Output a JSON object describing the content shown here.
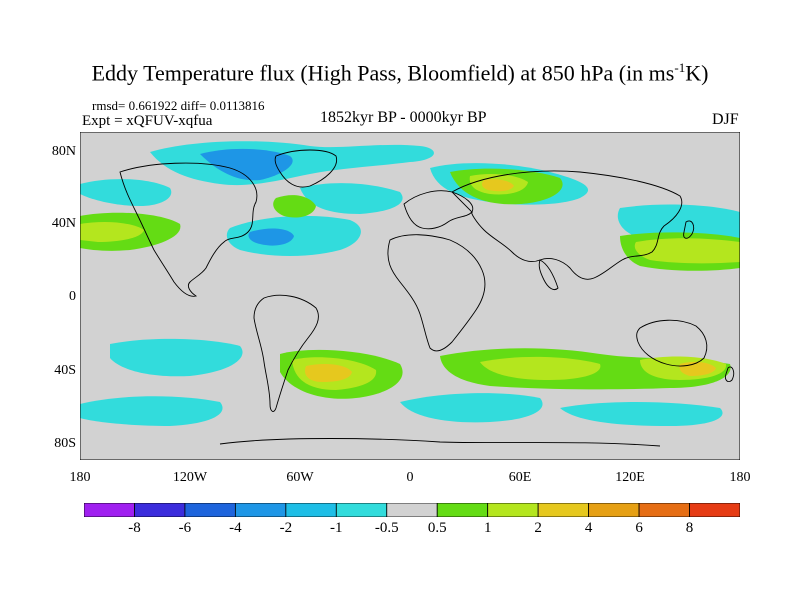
{
  "title": "Eddy Temperature flux (High Pass, Bloomfield) at 850 hPa (in ms",
  "title_sup": "-1",
  "title_end": "K)",
  "stats": "rmsd= 0.661922 diff= 0.0113816",
  "expt": "Expt = xQFUV-xqfua",
  "period": "1852kyr BP - 0000kyr BP",
  "season": "DJF",
  "lat_labels": [
    "80N",
    "40N",
    "0",
    "40S",
    "80S"
  ],
  "lon_labels": [
    "180",
    "120W",
    "60W",
    "0",
    "60E",
    "120E",
    "180"
  ],
  "colorbar": {
    "labels": [
      "-8",
      "-6",
      "-4",
      "-2",
      "-1",
      "-0.5",
      "0.5",
      "1",
      "2",
      "4",
      "6",
      "8"
    ],
    "colors": [
      "#a020f0",
      "#3c2ddc",
      "#1e64dc",
      "#1e96e6",
      "#1ebee6",
      "#32dcdc",
      "#d2d2d2",
      "#64dc14",
      "#b4e61e",
      "#e6c81e",
      "#e6a014",
      "#e66e14",
      "#e63c14"
    ]
  },
  "colors": {
    "land_bg": "#d2d2d2",
    "coast": "#000000"
  }
}
